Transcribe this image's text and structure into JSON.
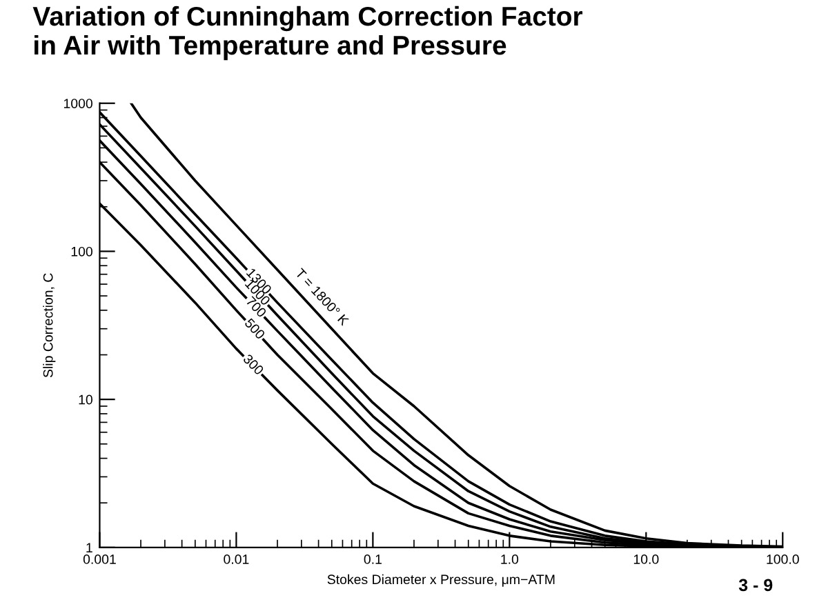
{
  "chart_data": {
    "type": "line",
    "title": "Variation of Cunningham Correction Factor\nin Air with Temperature and Pressure",
    "xlabel": "Stokes Diameter x Pressure, μm−ATM",
    "ylabel": "Slip Correction, C",
    "log": "xy",
    "xlim": [
      0.001,
      100
    ],
    "ylim": [
      1,
      1000
    ],
    "xticks": [
      {
        "value": 0.001,
        "label": "0.001"
      },
      {
        "value": 0.01,
        "label": "0.01"
      },
      {
        "value": 0.1,
        "label": "0.1"
      },
      {
        "value": 1,
        "label": "1.0"
      },
      {
        "value": 10,
        "label": "10.0"
      },
      {
        "value": 100,
        "label": "100.0"
      }
    ],
    "yticks": [
      1,
      10,
      100,
      1000
    ],
    "grid": false,
    "legend": false,
    "marker": "none",
    "line_style": "solid",
    "x": [
      0.001,
      0.002,
      0.005,
      0.01,
      0.02,
      0.05,
      0.1,
      0.2,
      0.5,
      1,
      2,
      5,
      10,
      20,
      50,
      100
    ],
    "series": [
      {
        "name": "300",
        "color": "#000000",
        "values": [
          210,
          110,
          45,
          22,
          11.5,
          5,
          2.7,
          1.9,
          1.4,
          1.2,
          1.1,
          1.04,
          1.02,
          1.01,
          1.004,
          1.002
        ]
      },
      {
        "name": "500",
        "color": "#000000",
        "values": [
          400,
          205,
          82,
          40,
          20,
          8.6,
          4.5,
          2.8,
          1.7,
          1.4,
          1.2,
          1.08,
          1.04,
          1.02,
          1.008,
          1.004
        ]
      },
      {
        "name": "700",
        "color": "#000000",
        "values": [
          560,
          285,
          115,
          57,
          29,
          12,
          6.2,
          3.6,
          2.0,
          1.55,
          1.28,
          1.12,
          1.06,
          1.03,
          1.012,
          1.006
        ]
      },
      {
        "name": "1000",
        "color": "#000000",
        "values": [
          720,
          365,
          148,
          74,
          37,
          15,
          7.7,
          4.5,
          2.4,
          1.75,
          1.38,
          1.15,
          1.08,
          1.04,
          1.016,
          1.008
        ]
      },
      {
        "name": "1300",
        "color": "#000000",
        "values": [
          870,
          440,
          178,
          90,
          45,
          18.5,
          9.5,
          5.4,
          2.8,
          1.95,
          1.5,
          1.2,
          1.1,
          1.05,
          1.02,
          1.01
        ]
      },
      {
        "name": "T = 1800° K",
        "color": "#000000",
        "x": [
          0.0017,
          0.002,
          0.005,
          0.01,
          0.02,
          0.05,
          0.1,
          0.2,
          0.5,
          1,
          2,
          5,
          10,
          20,
          50,
          100
        ],
        "values": [
          1000,
          800,
          300,
          150,
          75,
          30,
          15,
          9,
          4.2,
          2.6,
          1.8,
          1.3,
          1.15,
          1.07,
          1.03,
          1.015
        ]
      }
    ],
    "annotations": [
      "3 - 9"
    ]
  }
}
